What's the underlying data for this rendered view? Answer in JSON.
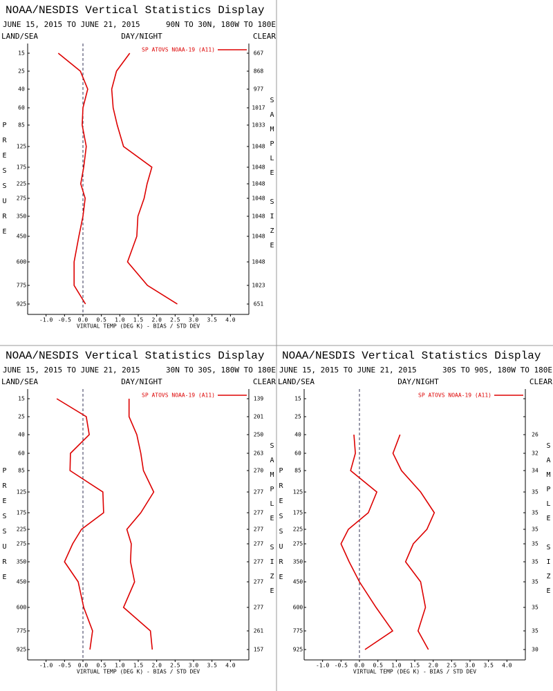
{
  "chart_data": [
    {
      "type": "line",
      "orientation": "horizontal",
      "title": "NOAA/NESDIS Vertical Statistics Display",
      "date_range": "JUNE 15, 2015 TO JUNE 21, 2015",
      "region": "90N TO 30N, 180W TO 180E",
      "land_sea": "LAND/SEA",
      "day_night": "DAY/NIGHT",
      "clear": "CLEAR",
      "y_label": "PRESSURE",
      "y2_label": "SAMPLE SIZE",
      "x_label": "VIRTUAL TEMP (DEG K) - BIAS / STD DEV",
      "legend_label": "SP ATOVS NOAA-19 (A11)",
      "categories": [
        "15",
        "25",
        "40",
        "60",
        "85",
        "125",
        "175",
        "225",
        "275",
        "350",
        "450",
        "600",
        "775",
        "925"
      ],
      "sample_sizes": [
        667,
        868,
        977,
        1017,
        1033,
        1048,
        1048,
        1048,
        1048,
        1048,
        1048,
        1048,
        1023,
        651
      ],
      "series": [
        {
          "color": "#dd0000",
          "values": [
            -0.67,
            -0.07,
            0.13,
            0.0,
            -0.02,
            0.09,
            0.02,
            -0.06,
            0.06,
            0.0,
            -0.11,
            -0.24,
            -0.24,
            0.07
          ]
        },
        {
          "color": "#dd0000",
          "values": [
            1.27,
            0.91,
            0.78,
            0.82,
            0.93,
            1.1,
            1.87,
            1.74,
            1.66,
            1.49,
            1.46,
            1.21,
            1.75,
            2.56
          ]
        }
      ],
      "xlim": [
        -1.5,
        4.5
      ],
      "xticks": [
        {
          "value": -1,
          "label": "-1.0"
        },
        {
          "value": -0.5,
          "label": "-0.5"
        },
        {
          "value": 0,
          "label": "0.0"
        },
        {
          "value": 0.5,
          "label": "0.5"
        },
        {
          "value": 1,
          "label": "1.0"
        },
        {
          "value": 1.5,
          "label": "1.5"
        },
        {
          "value": 2,
          "label": "2.0"
        },
        {
          "value": 2.5,
          "label": "2.5"
        },
        {
          "value": 3,
          "label": "3.0"
        },
        {
          "value": 3.5,
          "label": "3.5"
        },
        {
          "value": 4,
          "label": "4.0"
        }
      ]
    },
    {
      "type": "line",
      "orientation": "horizontal",
      "title": "NOAA/NESDIS Vertical Statistics Display",
      "date_range": "JUNE 15, 2015 TO JUNE 21, 2015",
      "region": "30N TO 30S, 180W TO 180E",
      "land_sea": "LAND/SEA",
      "day_night": "DAY/NIGHT",
      "clear": "CLEAR",
      "y_label": "PRESSURE",
      "y2_label": "SAMPLE SIZE",
      "x_label": "VIRTUAL TEMP (DEG K) - BIAS / STD DEV",
      "legend_label": "SP ATOVS NOAA-19 (A11)",
      "categories": [
        "15",
        "25",
        "40",
        "60",
        "85",
        "125",
        "175",
        "225",
        "275",
        "350",
        "450",
        "600",
        "775",
        "925"
      ],
      "sample_sizes": [
        139,
        201,
        250,
        263,
        270,
        277,
        277,
        277,
        277,
        277,
        277,
        277,
        261,
        157
      ],
      "series": [
        {
          "color": "#dd0000",
          "values": [
            -0.71,
            0.09,
            0.17,
            -0.34,
            -0.35,
            0.54,
            0.56,
            -0.04,
            -0.28,
            -0.5,
            -0.13,
            0.02,
            0.26,
            0.19
          ]
        },
        {
          "color": "#dd0000",
          "values": [
            1.25,
            1.25,
            1.46,
            1.57,
            1.64,
            1.92,
            1.57,
            1.19,
            1.31,
            1.29,
            1.4,
            1.1,
            1.83,
            1.88
          ]
        }
      ],
      "xlim": [
        -1.5,
        4.5
      ],
      "xticks": [
        {
          "value": -1,
          "label": "-1.0"
        },
        {
          "value": -0.5,
          "label": "-0.5"
        },
        {
          "value": 0,
          "label": "0.0"
        },
        {
          "value": 0.5,
          "label": "0.5"
        },
        {
          "value": 1,
          "label": "1.0"
        },
        {
          "value": 1.5,
          "label": "1.5"
        },
        {
          "value": 2,
          "label": "2.0"
        },
        {
          "value": 2.5,
          "label": "2.5"
        },
        {
          "value": 3,
          "label": "3.0"
        },
        {
          "value": 3.5,
          "label": "3.5"
        },
        {
          "value": 4,
          "label": "4.0"
        }
      ]
    },
    {
      "type": "line",
      "orientation": "horizontal",
      "title": "NOAA/NESDIS Vertical Statistics Display",
      "date_range": "JUNE 15, 2015 TO JUNE 21, 2015",
      "region": "30S TO 90S, 180W TO 180E",
      "land_sea": "LAND/SEA",
      "day_night": "DAY/NIGHT",
      "clear": "CLEAR",
      "y_label": "PRESSURE",
      "y2_label": "SAMPLE SIZE",
      "x_label": "VIRTUAL TEMP (DEG K) - BIAS / STD DEV",
      "legend_label": "SP ATOVS NOAA-19 (A11)",
      "categories": [
        "15",
        "25",
        "40",
        "60",
        "85",
        "125",
        "175",
        "225",
        "275",
        "350",
        "450",
        "600",
        "775",
        "925"
      ],
      "sample_sizes": [
        null,
        null,
        26,
        32,
        34,
        35,
        35,
        35,
        35,
        35,
        35,
        35,
        35,
        30
      ],
      "series": [
        {
          "color": "#dd0000",
          "values": [
            null,
            null,
            -0.15,
            -0.11,
            -0.24,
            0.47,
            0.24,
            -0.3,
            -0.5,
            -0.28,
            0.0,
            0.45,
            0.9,
            0.15
          ]
        },
        {
          "color": "#dd0000",
          "values": [
            null,
            null,
            1.1,
            0.91,
            1.14,
            1.66,
            2.03,
            1.83,
            1.46,
            1.25,
            1.66,
            1.79,
            1.59,
            1.87
          ]
        }
      ],
      "xlim": [
        -1.5,
        4.5
      ],
      "xticks": [
        {
          "value": -1,
          "label": "-1.0"
        },
        {
          "value": -0.5,
          "label": "-0.5"
        },
        {
          "value": 0,
          "label": "0.0"
        },
        {
          "value": 0.5,
          "label": "0.5"
        },
        {
          "value": 1,
          "label": "1.0"
        },
        {
          "value": 1.5,
          "label": "1.5"
        },
        {
          "value": 2,
          "label": "2.0"
        },
        {
          "value": 2.5,
          "label": "2.5"
        },
        {
          "value": 3,
          "label": "3.0"
        },
        {
          "value": 3.5,
          "label": "3.5"
        },
        {
          "value": 4,
          "label": "4.0"
        }
      ]
    }
  ]
}
